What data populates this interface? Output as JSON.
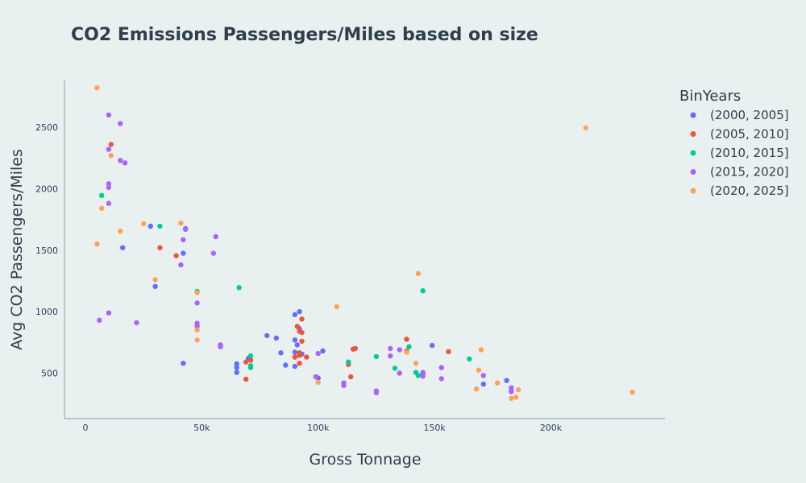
{
  "chart_data": {
    "type": "scatter",
    "title": "CO2 Emissions Passengers/Miles based on size",
    "xlabel": "Gross Tonnage",
    "ylabel": "Avg CO2 Passengers/Miles",
    "xlim": [
      -9000,
      249000
    ],
    "ylim": [
      130,
      2880
    ],
    "x_ticks": [
      0,
      50000,
      100000,
      150000,
      200000
    ],
    "x_tick_labels": [
      "0",
      "50k",
      "100k",
      "150k",
      "200k"
    ],
    "y_ticks": [
      500,
      1000,
      1500,
      2000,
      2500
    ],
    "y_tick_labels": [
      "500",
      "1000",
      "1500",
      "2000",
      "2500"
    ],
    "grid": false,
    "legend_title": "BinYears",
    "legend_position": "right",
    "series": [
      {
        "name": "(2000, 2005]",
        "color": "#636efa",
        "points": [
          [
            16000,
            1520
          ],
          [
            28000,
            1695
          ],
          [
            30000,
            1205
          ],
          [
            42000,
            580
          ],
          [
            42000,
            1475
          ],
          [
            43000,
            1675
          ],
          [
            65000,
            575
          ],
          [
            65000,
            545
          ],
          [
            65000,
            505
          ],
          [
            70000,
            620
          ],
          [
            78000,
            805
          ],
          [
            82000,
            785
          ],
          [
            84000,
            665
          ],
          [
            86000,
            565
          ],
          [
            90000,
            975
          ],
          [
            90000,
            770
          ],
          [
            90000,
            670
          ],
          [
            90000,
            555
          ],
          [
            91000,
            730
          ],
          [
            92000,
            1000
          ],
          [
            92000,
            860
          ],
          [
            93000,
            655
          ],
          [
            100000,
            460
          ],
          [
            102000,
            680
          ],
          [
            145000,
            490
          ],
          [
            149000,
            725
          ],
          [
            171000,
            410
          ],
          [
            181000,
            440
          ],
          [
            183000,
            350
          ]
        ]
      },
      {
        "name": "(2005, 2010]",
        "color": "#ef553b",
        "points": [
          [
            11000,
            2360
          ],
          [
            32000,
            1520
          ],
          [
            39000,
            1455
          ],
          [
            69000,
            590
          ],
          [
            69000,
            450
          ],
          [
            71000,
            605
          ],
          [
            90000,
            630
          ],
          [
            91000,
            880
          ],
          [
            92000,
            840
          ],
          [
            92000,
            665
          ],
          [
            92000,
            645
          ],
          [
            92000,
            580
          ],
          [
            93000,
            940
          ],
          [
            93000,
            830
          ],
          [
            93000,
            760
          ],
          [
            95000,
            630
          ],
          [
            113000,
            570
          ],
          [
            114000,
            470
          ],
          [
            115000,
            695
          ],
          [
            116000,
            700
          ],
          [
            138000,
            775
          ],
          [
            138000,
            680
          ],
          [
            156000,
            675
          ]
        ]
      },
      {
        "name": "(2010, 2015]",
        "color": "#00cc96",
        "points": [
          [
            7000,
            1945
          ],
          [
            32000,
            1695
          ],
          [
            48000,
            1165
          ],
          [
            66000,
            1195
          ],
          [
            71000,
            640
          ],
          [
            71000,
            560
          ],
          [
            71000,
            545
          ],
          [
            113000,
            590
          ],
          [
            125000,
            635
          ],
          [
            133000,
            540
          ],
          [
            139000,
            715
          ],
          [
            142000,
            505
          ],
          [
            143000,
            480
          ],
          [
            145000,
            1170
          ],
          [
            165000,
            615
          ]
        ]
      },
      {
        "name": "(2015, 2020]",
        "color": "#ab63fa",
        "points": [
          [
            6000,
            930
          ],
          [
            10000,
            2600
          ],
          [
            10000,
            2320
          ],
          [
            10000,
            2040
          ],
          [
            10000,
            2010
          ],
          [
            10000,
            1880
          ],
          [
            10000,
            990
          ],
          [
            15000,
            2530
          ],
          [
            15000,
            2230
          ],
          [
            17000,
            2210
          ],
          [
            22000,
            910
          ],
          [
            41000,
            1380
          ],
          [
            42000,
            1585
          ],
          [
            43000,
            1670
          ],
          [
            48000,
            1070
          ],
          [
            48000,
            905
          ],
          [
            48000,
            880
          ],
          [
            55000,
            1475
          ],
          [
            56000,
            1610
          ],
          [
            58000,
            730
          ],
          [
            58000,
            715
          ],
          [
            99000,
            470
          ],
          [
            100000,
            660
          ],
          [
            111000,
            400
          ],
          [
            111000,
            420
          ],
          [
            125000,
            355
          ],
          [
            125000,
            340
          ],
          [
            131000,
            700
          ],
          [
            131000,
            640
          ],
          [
            135000,
            690
          ],
          [
            135000,
            500
          ],
          [
            145000,
            505
          ],
          [
            145000,
            475
          ],
          [
            153000,
            545
          ],
          [
            153000,
            455
          ],
          [
            171000,
            480
          ],
          [
            183000,
            380
          ],
          [
            183000,
            355
          ]
        ]
      },
      {
        "name": "(2020, 2025]",
        "color": "#ffa15a",
        "points": [
          [
            5000,
            2820
          ],
          [
            5000,
            1550
          ],
          [
            7000,
            1840
          ],
          [
            11000,
            2270
          ],
          [
            15000,
            1655
          ],
          [
            25000,
            1715
          ],
          [
            30000,
            1260
          ],
          [
            41000,
            1720
          ],
          [
            48000,
            1155
          ],
          [
            48000,
            770
          ],
          [
            48000,
            850
          ],
          [
            108000,
            1040
          ],
          [
            100000,
            425
          ],
          [
            138000,
            670
          ],
          [
            142000,
            580
          ],
          [
            143000,
            1310
          ],
          [
            168000,
            370
          ],
          [
            169000,
            525
          ],
          [
            170000,
            690
          ],
          [
            177000,
            420
          ],
          [
            183000,
            295
          ],
          [
            185000,
            305
          ],
          [
            186000,
            365
          ],
          [
            215000,
            2495
          ],
          [
            235000,
            345
          ]
        ]
      }
    ]
  }
}
